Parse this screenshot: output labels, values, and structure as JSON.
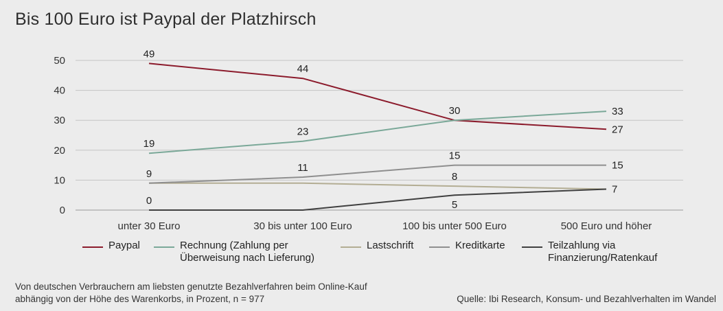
{
  "header": {
    "title": "Bis 100 Euro ist Paypal der Platzhirsch"
  },
  "chart_data": {
    "type": "line",
    "categories": [
      "unter 30 Euro",
      "30 bis unter 100 Euro",
      "100 bis unter 500 Euro",
      "500 Euro und höher"
    ],
    "ylim": [
      0,
      50
    ],
    "yticks": [
      "0",
      "10",
      "20",
      "30",
      "40",
      "50"
    ],
    "grid": true,
    "legend_position": "bottom",
    "series": [
      {
        "name": "Paypal",
        "values": [
          49,
          44,
          30,
          27
        ],
        "color": "#8b1a2b"
      },
      {
        "name": "Rechnung (Zahlung per\nÜberweisung nach Lieferung)",
        "values": [
          19,
          23,
          30,
          33
        ],
        "color": "#7aa898"
      },
      {
        "name": "Lastschrift",
        "values": [
          9,
          9,
          8,
          7
        ],
        "color": "#b3ad93"
      },
      {
        "name": "Kreditkarte",
        "values": [
          9,
          11,
          15,
          15
        ],
        "color": "#8e8e8e"
      },
      {
        "name": "Teilzahlung via\nFinanzierung/Ratenkauf",
        "values": [
          0,
          0,
          5,
          7
        ],
        "color": "#3f3f3f"
      }
    ],
    "data_labels": [
      {
        "text": "49",
        "series": 0,
        "index": 0,
        "pos": "above"
      },
      {
        "text": "44",
        "series": 0,
        "index": 1,
        "pos": "above"
      },
      {
        "text": "30",
        "series": 0,
        "index": 2,
        "pos": "above"
      },
      {
        "text": "27",
        "series": 0,
        "index": 3,
        "pos": "right"
      },
      {
        "text": "19",
        "series": 1,
        "index": 0,
        "pos": "above"
      },
      {
        "text": "23",
        "series": 1,
        "index": 1,
        "pos": "above"
      },
      {
        "text": "33",
        "series": 1,
        "index": 3,
        "pos": "right"
      },
      {
        "text": "9",
        "series": 2,
        "index": 0,
        "pos": "above"
      },
      {
        "text": "11",
        "series": 3,
        "index": 1,
        "pos": "above"
      },
      {
        "text": "15",
        "series": 3,
        "index": 2,
        "pos": "above"
      },
      {
        "text": "15",
        "series": 3,
        "index": 3,
        "pos": "right"
      },
      {
        "text": "8",
        "series": 2,
        "index": 2,
        "pos": "above"
      },
      {
        "text": "7",
        "series": 4,
        "index": 3,
        "pos": "right"
      },
      {
        "text": "0",
        "series": 4,
        "index": 0,
        "pos": "above"
      },
      {
        "text": "5",
        "series": 4,
        "index": 2,
        "pos": "below"
      }
    ]
  },
  "footer": {
    "note": "Von deutschen Verbrauchern am liebsten genutzte Bezahlverfahren beim Online-Kauf\nabhängig von der Höhe des Warenkorbs, in Prozent, n = 977",
    "source": "Quelle: Ibi Research, Konsum- und Bezahlverhalten im Wandel"
  }
}
